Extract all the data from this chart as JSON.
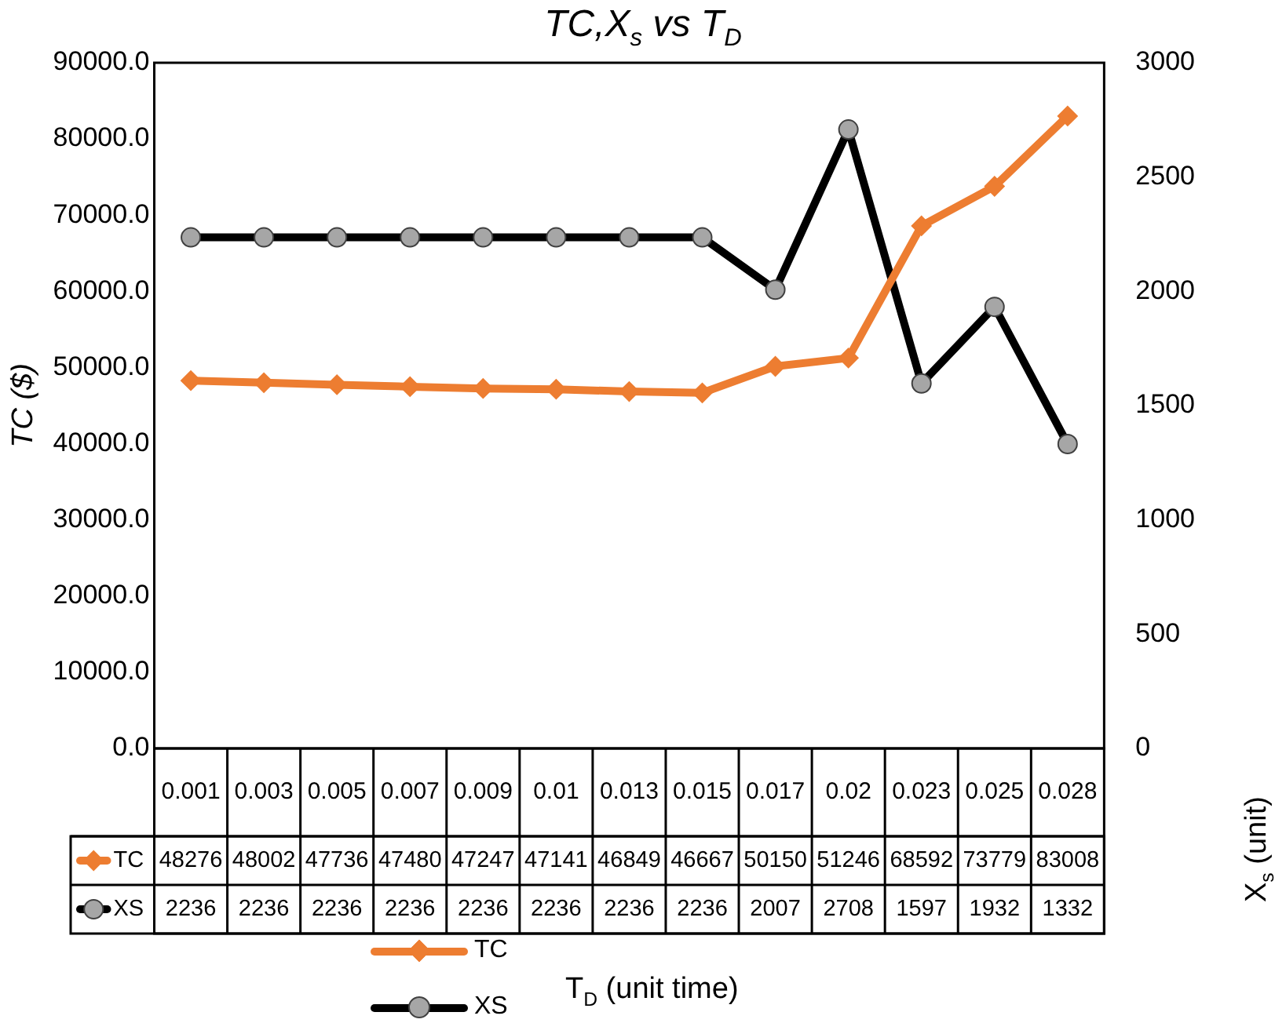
{
  "chart_data": {
    "type": "line",
    "title": "TC,X$_{s}$ vs T$_{D}$",
    "ylabel": "TC ($)",
    "y2label": "X$_{s}$ (unit)",
    "annotations": [
      "T$_{D}$ (unit time)"
    ],
    "categories": [
      "0.001",
      "0.003",
      "0.005",
      "0.007",
      "0.009",
      "0.01",
      "0.013",
      "0.015",
      "0.017",
      "0.02",
      "0.023",
      "0.025",
      "0.028"
    ],
    "series": [
      {
        "name": "TC",
        "color": "#ed7d31",
        "marker": "diamond",
        "values": [
          48276,
          48002,
          47736,
          47480,
          47247,
          47141,
          46849,
          46667,
          50150,
          51246,
          68592,
          73779,
          83008
        ]
      },
      {
        "name": "XS",
        "color": "#000000",
        "marker": "circle",
        "axis": "y2",
        "values": [
          2236,
          2236,
          2236,
          2236,
          2236,
          2236,
          2236,
          2236,
          2007,
          2708,
          1597,
          1932,
          1332
        ]
      }
    ],
    "ylim": [
      0,
      90000
    ],
    "yticks": [
      {
        "value": 0,
        "label": "0.0"
      },
      {
        "value": 10000,
        "label": "10000.0"
      },
      {
        "value": 20000,
        "label": "20000.0"
      },
      {
        "value": 30000,
        "label": "30000.0"
      },
      {
        "value": 40000,
        "label": "40000.0"
      },
      {
        "value": 50000,
        "label": "50000.0"
      },
      {
        "value": 60000,
        "label": "60000.0"
      },
      {
        "value": 70000,
        "label": "70000.0"
      },
      {
        "value": 80000,
        "label": "80000.0"
      },
      {
        "value": 90000,
        "label": "90000.0"
      }
    ],
    "y2lim": [
      0,
      3000
    ],
    "y2ticks": [
      0,
      500,
      1000,
      1500,
      2000,
      2500,
      3000
    ],
    "grid": false,
    "legend": "bottom left",
    "data_labels": true,
    "line_style": "solid"
  }
}
